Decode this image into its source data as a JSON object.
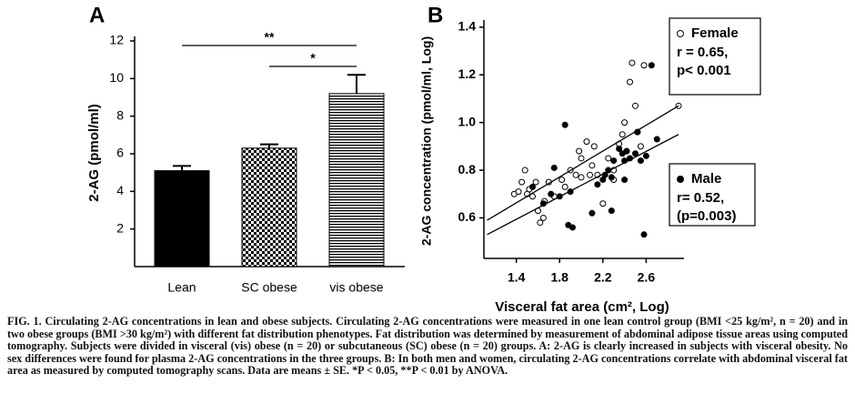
{
  "chart_data": [
    {
      "type": "bar",
      "title": "A",
      "ylabel": "2-AG (pmol/ml)",
      "categories": [
        "Lean",
        "SC obese",
        "vis obese"
      ],
      "values": [
        5.1,
        6.3,
        9.2
      ],
      "errors": [
        0.25,
        0.2,
        1.0
      ],
      "color": "#000000",
      "patterns": [
        "solid",
        "checker",
        "hstripes"
      ],
      "ylim": [
        0,
        12
      ],
      "yticks": [
        2,
        4,
        6,
        8,
        10,
        12
      ],
      "annotations": [
        "**",
        "*"
      ]
    },
    {
      "type": "scatter",
      "title": "B",
      "xlabel": "Visceral fat area (cm², Log)",
      "ylabel": "2-AG concentration (pmol/ml, Log)",
      "xlim": [
        1.1,
        2.95
      ],
      "ylim": [
        0.43,
        1.43
      ],
      "xticks": [
        1.4,
        1.8,
        2.2,
        2.6
      ],
      "yticks": [
        0.6,
        0.8,
        {
          "value": 1,
          "label": "1.0"
        },
        1.2,
        1.4
      ],
      "series": [
        {
          "name": "Female",
          "marker": "open",
          "color": "#000000",
          "stats": [
            "r = 0.65,",
            "p< 0.001"
          ],
          "x": [
            1.38,
            1.42,
            1.45,
            1.48,
            1.52,
            1.55,
            1.58,
            1.6,
            1.62,
            1.65,
            1.66,
            1.7,
            1.75,
            1.82,
            1.85,
            1.9,
            1.95,
            1.98,
            2.0,
            2.05,
            2.08,
            2.1,
            2.12,
            2.15,
            2.2,
            2.25,
            2.3,
            2.35,
            2.38,
            2.4,
            2.42,
            2.45,
            2.47,
            2.5,
            2.52,
            2.55,
            2.58,
            2.3,
            2.0,
            1.5,
            2.9
          ],
          "y": [
            0.7,
            0.71,
            0.75,
            0.8,
            0.72,
            0.69,
            0.75,
            0.63,
            0.58,
            0.6,
            0.67,
            0.75,
            0.69,
            0.76,
            0.73,
            0.8,
            0.78,
            0.88,
            0.85,
            0.92,
            0.78,
            0.82,
            0.9,
            0.78,
            0.66,
            0.85,
            0.8,
            0.91,
            0.95,
            1.0,
            0.88,
            1.17,
            1.25,
            1.07,
            0.96,
            0.9,
            1.24,
            0.76,
            0.77,
            0.7,
            1.07
          ],
          "fit": {
            "x": [
              1.13,
              2.9
            ],
            "y": [
              0.59,
              1.07
            ]
          }
        },
        {
          "name": "Male",
          "marker": "filled",
          "color": "#000000",
          "stats": [
            "r= 0.52,",
            "(p=0.003)"
          ],
          "x": [
            1.55,
            1.65,
            1.72,
            1.75,
            1.8,
            1.85,
            1.88,
            1.9,
            1.92,
            2.1,
            2.15,
            2.2,
            2.22,
            2.25,
            2.28,
            2.3,
            2.35,
            2.38,
            2.4,
            2.42,
            2.45,
            2.5,
            2.52,
            2.55,
            2.58,
            2.6,
            2.65,
            2.7,
            2.28,
            2.4
          ],
          "y": [
            0.73,
            0.66,
            0.7,
            0.81,
            0.69,
            0.99,
            0.57,
            0.71,
            0.56,
            0.62,
            0.74,
            0.76,
            0.78,
            0.8,
            0.63,
            0.84,
            0.89,
            0.87,
            0.84,
            0.88,
            0.85,
            0.87,
            0.96,
            0.84,
            0.53,
            0.86,
            1.24,
            0.93,
            0.77,
            0.76
          ],
          "fit": {
            "x": [
              1.13,
              2.9
            ],
            "y": [
              0.53,
              0.95
            ]
          }
        }
      ]
    }
  ],
  "caption": "FIG. 1. Circulating 2-AG concentrations in lean and obese subjects. Circulating 2-AG concentrations were measured in one lean control group (BMI <25 kg/m², n = 20) and in two obese groups (BMI >30 kg/m²) with different fat distribution phenotypes. Fat distribution was determined by measurement of abdominal adipose tissue areas using computed tomography. Subjects were divided in visceral (vis) obese (n = 20) or subcutaneous (SC) obese (n = 20) groups. A: 2-AG is clearly increased in subjects with visceral obesity. No sex differences were found for plasma 2-AG concentrations in the three groups. B: In both men and women, circulating 2-AG concentrations correlate with abdominal visceral fat area as measured by computed tomography scans. Data are means ± SE. *P < 0.05, **P < 0.01 by ANOVA."
}
